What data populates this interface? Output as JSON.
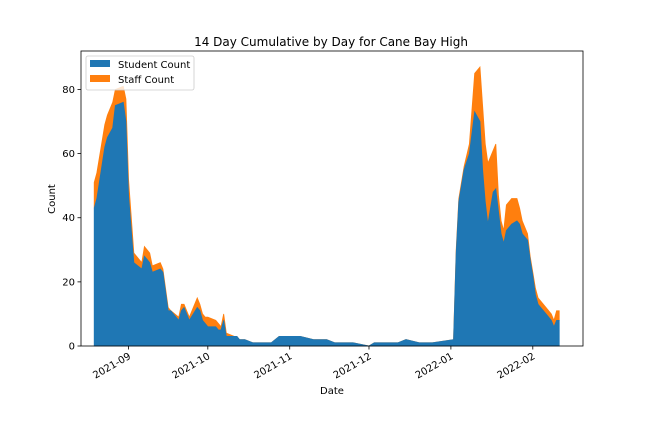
{
  "chart_data": {
    "type": "area",
    "stacked": true,
    "title": "14 Day Cumulative by Day for Cane Bay High",
    "xlabel": "Date",
    "ylabel": "Count",
    "xlim": [
      "2021-08-14",
      "2022-02-20"
    ],
    "ylim": [
      0,
      92
    ],
    "x_ticks": [
      "2021-09",
      "2021-10",
      "2021-11",
      "2021-12",
      "2022-01",
      "2022-02"
    ],
    "y_ticks": [
      0,
      20,
      40,
      60,
      80
    ],
    "legend_position": "upper left",
    "grid": false,
    "dates": [
      "2021-08-19",
      "2021-08-20",
      "2021-08-23",
      "2021-08-24",
      "2021-08-26",
      "2021-08-27",
      "2021-08-30",
      "2021-08-31",
      "2021-09-01",
      "2021-09-03",
      "2021-09-06",
      "2021-09-07",
      "2021-09-08",
      "2021-09-09",
      "2021-09-10",
      "2021-09-13",
      "2021-09-14",
      "2021-09-15",
      "2021-09-16",
      "2021-09-17",
      "2021-09-20",
      "2021-09-21",
      "2021-09-22",
      "2021-09-23",
      "2021-09-24",
      "2021-09-27",
      "2021-09-28",
      "2021-09-29",
      "2021-09-30",
      "2021-10-01",
      "2021-10-04",
      "2021-10-05",
      "2021-10-06",
      "2021-10-07",
      "2021-10-08",
      "2021-10-11",
      "2021-10-12",
      "2021-10-13",
      "2021-10-14",
      "2021-10-15",
      "2021-10-18",
      "2021-10-20",
      "2021-10-25",
      "2021-10-28",
      "2021-11-01",
      "2021-11-05",
      "2021-11-10",
      "2021-11-15",
      "2021-11-18",
      "2021-11-20",
      "2021-11-25",
      "2021-12-01",
      "2021-12-03",
      "2021-12-10",
      "2021-12-12",
      "2021-12-15",
      "2021-12-20",
      "2021-12-25",
      "2022-01-02",
      "2022-01-03",
      "2022-01-04",
      "2022-01-06",
      "2022-01-08",
      "2022-01-10",
      "2022-01-12",
      "2022-01-13",
      "2022-01-14",
      "2022-01-15",
      "2022-01-17",
      "2022-01-18",
      "2022-01-19",
      "2022-01-20",
      "2022-01-21",
      "2022-01-22",
      "2022-01-24",
      "2022-01-26",
      "2022-01-27",
      "2022-01-28",
      "2022-01-30",
      "2022-01-31",
      "2022-02-01",
      "2022-02-02",
      "2022-02-03",
      "2022-02-06",
      "2022-02-08",
      "2022-02-09",
      "2022-02-10",
      "2022-02-11",
      "2022-02-12",
      "2022-02-13",
      "2022-02-14"
    ],
    "series": [
      {
        "name": "Student Count",
        "color": "#1f77b4",
        "values": [
          43,
          46,
          62,
          65,
          68,
          75,
          76,
          70,
          47,
          26,
          24,
          28,
          27,
          26,
          23,
          24,
          23,
          17,
          11,
          11,
          8,
          11,
          12,
          10,
          8,
          12,
          11,
          8,
          7,
          6,
          6,
          5,
          5,
          8,
          3,
          3,
          3,
          2,
          2,
          2,
          1,
          1,
          1,
          3,
          3,
          3,
          2,
          2,
          1,
          1,
          1,
          0,
          1,
          1,
          1,
          2,
          1,
          1,
          2,
          29,
          45,
          55,
          60,
          73,
          70,
          55,
          45,
          38,
          48,
          49,
          42,
          35,
          32,
          36,
          38,
          39,
          38,
          35,
          33,
          27,
          22,
          16,
          13,
          10,
          8,
          6,
          8,
          8,
          null,
          null,
          null
        ]
      },
      {
        "name": "Staff Count",
        "color": "#ff7f0e",
        "values": [
          8,
          8,
          7,
          7,
          8,
          5,
          5,
          7,
          5,
          3,
          2,
          3,
          3,
          3,
          2,
          2,
          1,
          1,
          1,
          0,
          1,
          2,
          1,
          1,
          1,
          3,
          2,
          2,
          2,
          3,
          2,
          2,
          1,
          2,
          1,
          0,
          0,
          0,
          0,
          0,
          0,
          0,
          0,
          0,
          0,
          0,
          0,
          0,
          0,
          0,
          0,
          0,
          0,
          0,
          0,
          0,
          0,
          0,
          0,
          1,
          1,
          1,
          3,
          12,
          17,
          20,
          18,
          19,
          13,
          14,
          5,
          4,
          4,
          8,
          8,
          7,
          5,
          4,
          2,
          1,
          1,
          2,
          2,
          2,
          2,
          2,
          3,
          3,
          null,
          null,
          null
        ]
      }
    ]
  }
}
